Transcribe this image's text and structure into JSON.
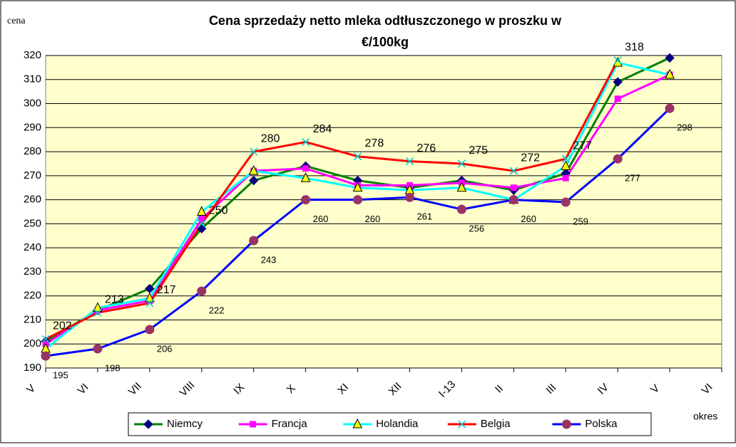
{
  "chart_data": {
    "type": "line",
    "title": [
      "Cena sprzedaży netto mleka odtłuszczonego w proszku w",
      "€/100kg"
    ],
    "y_label": "cena",
    "x_label": "okres",
    "categories": [
      "V",
      "VI",
      "VII",
      "VIII",
      "IX",
      "X",
      "XI",
      "XII",
      "I-13",
      "II",
      "III",
      "IV",
      "V",
      "VI"
    ],
    "series": [
      {
        "name": "Niemcy",
        "color": "#008000",
        "marker": "diamond",
        "marker_color": "#000080",
        "show_labels": false,
        "values": [
          201,
          214,
          223,
          248,
          268,
          274,
          268,
          265,
          268,
          264,
          271,
          309,
          319,
          null
        ]
      },
      {
        "name": "Francja",
        "color": "#ff00ff",
        "marker": "square",
        "marker_color": "#ff00ff",
        "show_labels": false,
        "values": [
          200,
          214,
          218,
          252,
          272,
          273,
          266,
          266,
          267,
          265,
          269,
          302,
          312,
          null
        ]
      },
      {
        "name": "Holandia",
        "color": "#00ffff",
        "marker": "triangle",
        "marker_color": "#ffff00",
        "show_labels": false,
        "values": [
          198,
          215,
          219,
          255,
          272,
          269,
          265,
          264,
          265,
          260,
          274,
          317,
          312,
          null
        ]
      },
      {
        "name": "Belgia",
        "color": "#ff0000",
        "marker": "x",
        "marker_color": "#00cccc",
        "show_labels": true,
        "values": [
          202,
          213,
          217,
          250,
          280,
          284,
          278,
          276,
          275,
          272,
          277,
          318,
          null,
          null
        ]
      },
      {
        "name": "Polska",
        "color": "#0000ff",
        "marker": "circle",
        "marker_color": "#993366",
        "show_labels": true,
        "values": [
          195,
          198,
          206,
          222,
          243,
          260,
          260,
          261,
          256,
          260,
          259,
          277,
          298,
          null
        ]
      }
    ],
    "ylim": [
      190,
      320
    ],
    "yticks": [
      190,
      200,
      210,
      220,
      230,
      240,
      250,
      260,
      270,
      280,
      290,
      300,
      310,
      320
    ],
    "grid": true,
    "legend": "bottom",
    "plot_background": "#ffffcc"
  }
}
